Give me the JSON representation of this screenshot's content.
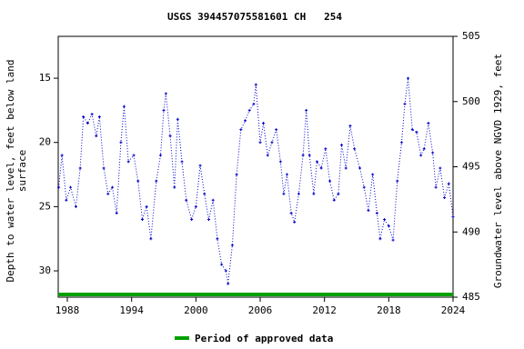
{
  "chart_data": {
    "type": "line",
    "title": "USGS 394457075581601 CH   254",
    "y_label": [
      "Depth to water level, feet below land",
      "surface"
    ],
    "y2_label": "Groundwater level above NGVD 1929, feet",
    "xlim": [
      1987.15,
      2024
    ],
    "xticks": [
      1988,
      1994,
      2000,
      2006,
      2012,
      2018,
      2024
    ],
    "ylim": [
      32.05,
      11.74
    ],
    "yticks": [
      15,
      20,
      25,
      30
    ],
    "y2lim": [
      485,
      505
    ],
    "y2ticks": [
      485,
      490,
      495,
      500,
      505
    ],
    "series": [
      {
        "name": "Depth to water level",
        "color": "#0000cc",
        "x": [
          1987.2,
          1987.5,
          1987.9,
          1988.3,
          1988.8,
          1989.2,
          1989.5,
          1989.9,
          1990.3,
          1990.7,
          1991.0,
          1991.4,
          1991.8,
          1992.2,
          1992.6,
          1993.0,
          1993.3,
          1993.7,
          1994.2,
          1994.6,
          1995.0,
          1995.4,
          1995.8,
          1996.3,
          1996.7,
          1997.0,
          1997.2,
          1997.6,
          1998.0,
          1998.3,
          1998.7,
          1999.1,
          1999.6,
          2000.0,
          2000.4,
          2000.8,
          2001.2,
          2001.6,
          2002.0,
          2002.4,
          2002.8,
          2003.0,
          2003.4,
          2003.8,
          2004.2,
          2004.6,
          2005.0,
          2005.4,
          2005.6,
          2006.0,
          2006.3,
          2006.7,
          2007.1,
          2007.5,
          2007.9,
          2008.2,
          2008.5,
          2008.9,
          2009.2,
          2009.6,
          2010.0,
          2010.3,
          2010.6,
          2011.0,
          2011.3,
          2011.7,
          2012.1,
          2012.5,
          2012.9,
          2013.3,
          2013.6,
          2014.0,
          2014.4,
          2014.8,
          2015.3,
          2015.7,
          2016.1,
          2016.5,
          2016.9,
          2017.2,
          2017.6,
          2018.0,
          2018.4,
          2018.8,
          2019.2,
          2019.5,
          2019.8,
          2020.2,
          2020.6,
          2021.0,
          2021.3,
          2021.7,
          2022.1,
          2022.4,
          2022.8,
          2023.2,
          2023.6,
          2024.0
        ],
        "values": [
          23.5,
          21,
          24.5,
          23.5,
          25,
          22,
          18,
          18.5,
          17.8,
          19.5,
          18,
          22,
          24,
          23.5,
          25.5,
          20,
          17.2,
          21.5,
          21,
          23,
          26,
          25,
          27.5,
          23,
          21,
          17.5,
          16.2,
          19.5,
          23.5,
          18.2,
          21.5,
          24.5,
          26,
          25,
          21.8,
          24,
          26,
          24.5,
          27.5,
          29.5,
          30,
          31,
          28,
          22.5,
          19,
          18.3,
          17.5,
          17,
          15.5,
          20,
          18.5,
          21,
          20,
          19,
          21.5,
          24,
          22.5,
          25.5,
          26.2,
          24,
          21,
          17.5,
          21,
          24,
          21.5,
          22,
          20.5,
          23,
          24.5,
          24,
          20.2,
          22,
          18.7,
          20.5,
          22,
          23.5,
          25.3,
          22.5,
          25.5,
          27.5,
          26,
          26.5,
          27.6,
          23,
          20,
          17,
          15,
          19,
          19.2,
          21,
          20.5,
          18.5,
          20.8,
          23.5,
          22,
          24.3,
          23.2,
          25.8
        ]
      }
    ],
    "approved_periods": [
      {
        "start": 1987.15,
        "end": 2024,
        "color": "#00a000"
      }
    ],
    "legend_label": "Period of approved data"
  }
}
